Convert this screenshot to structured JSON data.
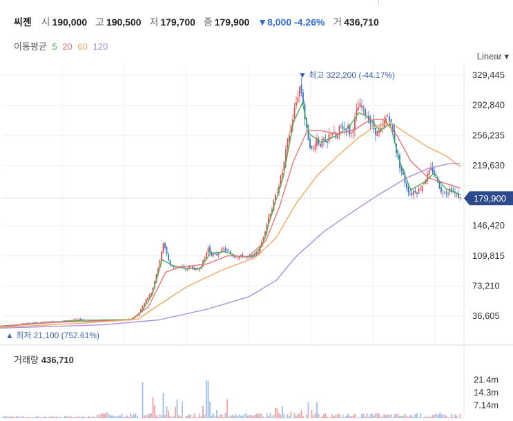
{
  "header": {
    "name": "씨젠",
    "open_label": "시",
    "open": "190,000",
    "high_label": "고",
    "high": "190,500",
    "low_label": "저",
    "low": "179,700",
    "close_label": "종",
    "close": "179,900",
    "change": "▼8,000",
    "change_pct": "-4.26%",
    "volume_label": "거",
    "volume": "436,710"
  },
  "moving_average": {
    "label": "이동평균",
    "periods": [
      {
        "period": "5",
        "color": "#4caf50"
      },
      {
        "period": "20",
        "color": "#e57373"
      },
      {
        "period": "60",
        "color": "#f0a860"
      },
      {
        "period": "120",
        "color": "#a98ee0"
      }
    ]
  },
  "scale_mode": "Linear ▾",
  "colors": {
    "up": "#e14b4b",
    "down": "#2f6fd6",
    "ma5": "#4caf50",
    "ma20": "#e57373",
    "ma60": "#f0a860",
    "ma120": "#a98ee0",
    "price_badge": "#2d4a8c"
  },
  "chart_data": {
    "type": "candlestick",
    "price_axis": {
      "ticks": [
        "329,445",
        "292,840",
        "256,235",
        "219,630",
        "146,420",
        "109,815",
        "73,210",
        "36,605"
      ],
      "tick_values": [
        329445,
        292840,
        256235,
        219630,
        146420,
        109815,
        73210,
        36605
      ],
      "range": [
        21100,
        332000
      ]
    },
    "current_price_label": "179,900",
    "current_price": 179900,
    "max_annotation": "▼ 최고 322,200 (-44.17%)",
    "min_annotation": "▲ 최저 21,100 (752.61%)",
    "price_path": [
      [
        0,
        25000
      ],
      [
        18,
        24000
      ],
      [
        35,
        28000
      ],
      [
        55,
        28500
      ],
      [
        75,
        30000
      ],
      [
        95,
        31000
      ],
      [
        115,
        33000
      ],
      [
        130,
        31000
      ],
      [
        150,
        32000
      ],
      [
        170,
        31000
      ],
      [
        190,
        33000
      ],
      [
        200,
        38000
      ],
      [
        210,
        55000
      ],
      [
        220,
        66000
      ],
      [
        227,
        90000
      ],
      [
        232,
        105000
      ],
      [
        236,
        128000
      ],
      [
        240,
        115000
      ],
      [
        246,
        100000
      ],
      [
        252,
        95000
      ],
      [
        260,
        98000
      ],
      [
        268,
        93000
      ],
      [
        276,
        97000
      ],
      [
        284,
        92000
      ],
      [
        290,
        96000
      ],
      [
        297,
        108000
      ],
      [
        301,
        120000
      ],
      [
        306,
        112000
      ],
      [
        312,
        110000
      ],
      [
        318,
        115000
      ],
      [
        324,
        118000
      ],
      [
        330,
        115000
      ],
      [
        338,
        110000
      ],
      [
        345,
        108000
      ],
      [
        352,
        110000
      ],
      [
        358,
        107000
      ],
      [
        364,
        109000
      ],
      [
        370,
        111000
      ],
      [
        376,
        118000
      ],
      [
        380,
        130000
      ],
      [
        386,
        148000
      ],
      [
        390,
        160000
      ],
      [
        395,
        170000
      ],
      [
        400,
        185000
      ],
      [
        405,
        200000
      ],
      [
        410,
        215000
      ],
      [
        415,
        242000
      ],
      [
        420,
        262000
      ],
      [
        425,
        282000
      ],
      [
        430,
        300000
      ],
      [
        434,
        315000
      ],
      [
        438,
        305000
      ],
      [
        441,
        280000
      ],
      [
        444,
        262000
      ],
      [
        448,
        248000
      ],
      [
        453,
        235000
      ],
      [
        458,
        255000
      ],
      [
        463,
        245000
      ],
      [
        468,
        250000
      ],
      [
        473,
        242000
      ],
      [
        478,
        262000
      ],
      [
        483,
        258000
      ],
      [
        488,
        250000
      ],
      [
        493,
        270000
      ],
      [
        498,
        264000
      ],
      [
        503,
        268000
      ],
      [
        508,
        256000
      ],
      [
        513,
        272000
      ],
      [
        518,
        290000
      ],
      [
        523,
        292000
      ],
      [
        528,
        284000
      ],
      [
        533,
        278000
      ],
      [
        538,
        270000
      ],
      [
        543,
        262000
      ],
      [
        548,
        258000
      ],
      [
        553,
        264000
      ],
      [
        558,
        275000
      ],
      [
        563,
        282000
      ],
      [
        567,
        268000
      ],
      [
        571,
        252000
      ],
      [
        575,
        232000
      ],
      [
        579,
        220000
      ],
      [
        583,
        210000
      ],
      [
        587,
        198000
      ],
      [
        591,
        190000
      ],
      [
        595,
        184000
      ],
      [
        600,
        190000
      ],
      [
        605,
        188000
      ],
      [
        610,
        194000
      ],
      [
        615,
        202000
      ],
      [
        620,
        208000
      ],
      [
        625,
        216000
      ],
      [
        630,
        208000
      ],
      [
        635,
        200000
      ],
      [
        639,
        186000
      ],
      [
        643,
        190000
      ],
      [
        648,
        187000
      ],
      [
        653,
        192000
      ],
      [
        658,
        186000
      ],
      [
        663,
        182000
      ],
      [
        667,
        179900
      ]
    ],
    "ma_paths": {
      "ma5": [
        [
          0,
          24500
        ],
        [
          60,
          28000
        ],
        [
          120,
          31500
        ],
        [
          190,
          32500
        ],
        [
          205,
          42000
        ],
        [
          220,
          62000
        ],
        [
          235,
          105000
        ],
        [
          250,
          98000
        ],
        [
          270,
          94000
        ],
        [
          290,
          95000
        ],
        [
          305,
          113000
        ],
        [
          325,
          115000
        ],
        [
          345,
          109000
        ],
        [
          365,
          109000
        ],
        [
          380,
          122000
        ],
        [
          395,
          165000
        ],
        [
          410,
          205000
        ],
        [
          425,
          272000
        ],
        [
          438,
          296000
        ],
        [
          448,
          258000
        ],
        [
          465,
          248000
        ],
        [
          485,
          255000
        ],
        [
          505,
          266000
        ],
        [
          520,
          284000
        ],
        [
          535,
          278000
        ],
        [
          550,
          262000
        ],
        [
          565,
          270000
        ],
        [
          580,
          222000
        ],
        [
          595,
          190000
        ],
        [
          615,
          200000
        ],
        [
          628,
          210000
        ],
        [
          645,
          192000
        ],
        [
          667,
          184000
        ]
      ],
      "ma20": [
        [
          0,
          24000
        ],
        [
          80,
          29000
        ],
        [
          190,
          32000
        ],
        [
          215,
          48000
        ],
        [
          240,
          90000
        ],
        [
          260,
          96000
        ],
        [
          300,
          100000
        ],
        [
          330,
          110000
        ],
        [
          360,
          109000
        ],
        [
          385,
          128000
        ],
        [
          405,
          170000
        ],
        [
          425,
          225000
        ],
        [
          445,
          262000
        ],
        [
          465,
          262000
        ],
        [
          490,
          258000
        ],
        [
          515,
          264000
        ],
        [
          535,
          275000
        ],
        [
          555,
          276000
        ],
        [
          575,
          256000
        ],
        [
          595,
          225000
        ],
        [
          620,
          205000
        ],
        [
          645,
          198000
        ],
        [
          667,
          192000
        ]
      ],
      "ma60": [
        [
          0,
          23000
        ],
        [
          120,
          28000
        ],
        [
          200,
          33000
        ],
        [
          230,
          50000
        ],
        [
          270,
          72000
        ],
        [
          320,
          92000
        ],
        [
          370,
          108000
        ],
        [
          400,
          132000
        ],
        [
          430,
          175000
        ],
        [
          460,
          208000
        ],
        [
          490,
          232000
        ],
        [
          520,
          254000
        ],
        [
          545,
          268000
        ],
        [
          565,
          272000
        ],
        [
          590,
          258000
        ],
        [
          620,
          242000
        ],
        [
          645,
          232000
        ],
        [
          667,
          218000
        ]
      ],
      "ma120": [
        [
          0,
          22000
        ],
        [
          150,
          26000
        ],
        [
          230,
          32000
        ],
        [
          300,
          45000
        ],
        [
          360,
          60000
        ],
        [
          400,
          80000
        ],
        [
          430,
          110000
        ],
        [
          470,
          140000
        ],
        [
          510,
          163000
        ],
        [
          550,
          185000
        ],
        [
          590,
          205000
        ],
        [
          620,
          216000
        ],
        [
          650,
          222000
        ],
        [
          667,
          222000
        ]
      ]
    },
    "volume": {
      "label": "거래량",
      "current": "436,710",
      "ticks": [
        "21.4m",
        "14.3m",
        "7.14m"
      ],
      "tick_values": [
        21400000,
        14300000,
        7140000
      ],
      "range": [
        0,
        30000000
      ]
    }
  }
}
